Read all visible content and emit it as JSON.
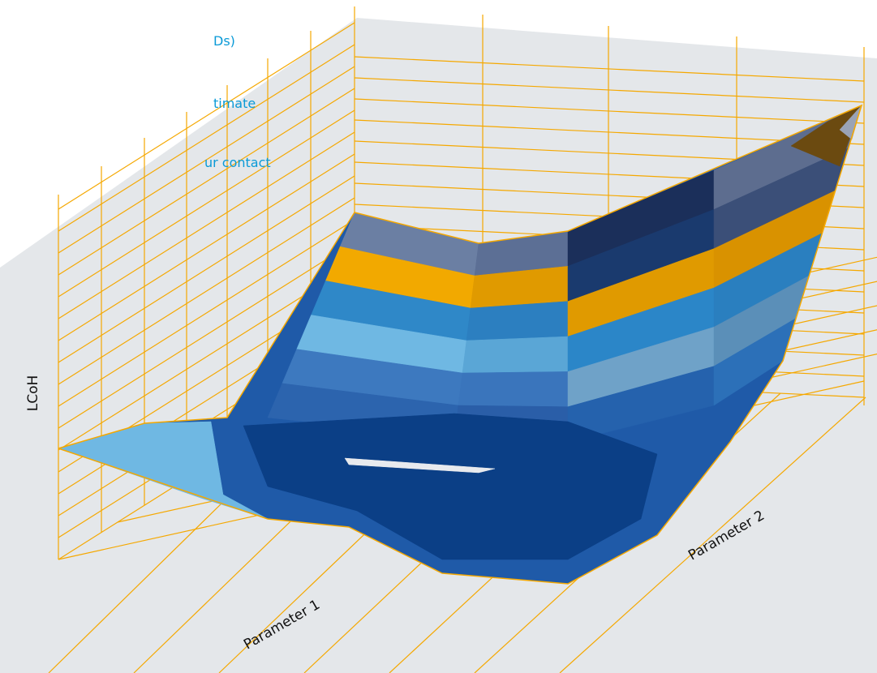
{
  "sidebar": {
    "links": [
      "Ds)",
      "timate",
      "ur contact"
    ]
  },
  "axes": {
    "z_label": "LCoH",
    "x_label": "Parameter 1",
    "y_label": "Parameter 2"
  }
}
